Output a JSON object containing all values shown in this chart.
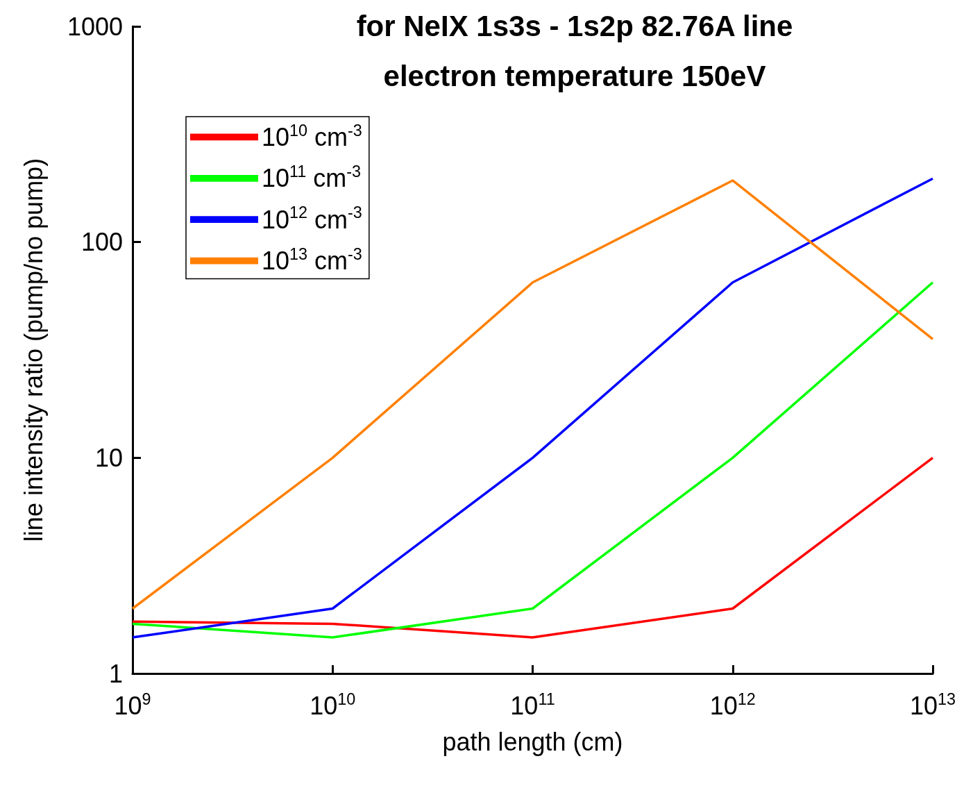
{
  "chart_data": {
    "type": "line",
    "title": "for NeIX 1s3s - 1s2p 82.76A line\nelectron temperature 150eV",
    "xlabel": "path length (cm)",
    "ylabel": "line intensity ratio (pump/no pump)",
    "log": "xy",
    "x": [
      1000000000.0,
      10000000000.0,
      100000000000.0,
      1000000000000.0,
      10000000000000.0
    ],
    "xlim": [
      1000000000.0,
      10000000000000.0
    ],
    "xticks": [
      {
        "value": 1000000000.0,
        "label": "10$^{9}$"
      },
      {
        "value": 10000000000.0,
        "label": "10$^{10}$"
      },
      {
        "value": 100000000000.0,
        "label": "10$^{11}$"
      },
      {
        "value": 1000000000000.0,
        "label": "10$^{12}$"
      },
      {
        "value": 10000000000000.0,
        "label": "10$^{13}$"
      }
    ],
    "ylim": [
      1,
      1000
    ],
    "yticks": [
      1,
      10,
      100,
      1000
    ],
    "grid": false,
    "legend": "top left",
    "marker": "none",
    "line_style": "solid",
    "series": [
      {
        "name": "10$^{10}$ cm$^{-3}$",
        "color": "#ff0000",
        "values": [
          1.74,
          1.7,
          1.47,
          2.0,
          10
        ]
      },
      {
        "name": "10$^{11}$ cm$^{-3}$",
        "color": "#00ff00",
        "values": [
          1.7,
          1.47,
          2.0,
          10,
          65
        ]
      },
      {
        "name": "10$^{12}$ cm$^{-3}$",
        "color": "#0000ff",
        "values": [
          1.47,
          2.0,
          10,
          65,
          197
        ]
      },
      {
        "name": "10$^{13}$ cm$^{-3}$",
        "color": "#ff8000",
        "values": [
          2.0,
          10,
          65,
          193,
          35.5
        ]
      }
    ]
  }
}
